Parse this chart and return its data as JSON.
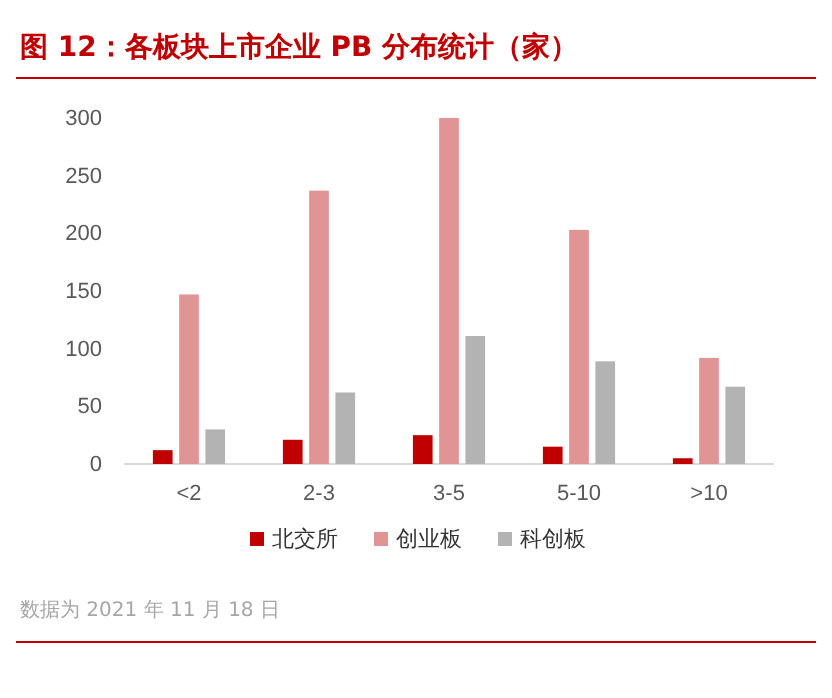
{
  "chart_data": {
    "type": "bar",
    "title": "图 12：各板块上市企业 PB 分布统计（家）",
    "categories": [
      "<2",
      "2-3",
      "3-5",
      "5-10",
      ">10"
    ],
    "series": [
      {
        "name": "北交所",
        "color": "#c00000",
        "values": [
          12,
          21,
          25,
          15,
          5
        ]
      },
      {
        "name": "创业板",
        "color": "#e09494",
        "values": [
          147,
          237,
          300,
          203,
          92
        ]
      },
      {
        "name": "科创板",
        "color": "#b3b3b3",
        "values": [
          30,
          62,
          111,
          89,
          67
        ]
      }
    ],
    "ylim": [
      0,
      300
    ],
    "yticks": [
      0,
      50,
      100,
      150,
      200,
      250,
      300
    ],
    "grid": false,
    "legend": "bottom",
    "annotations": [
      "数据为 2021 年 11 月 18 日"
    ]
  }
}
